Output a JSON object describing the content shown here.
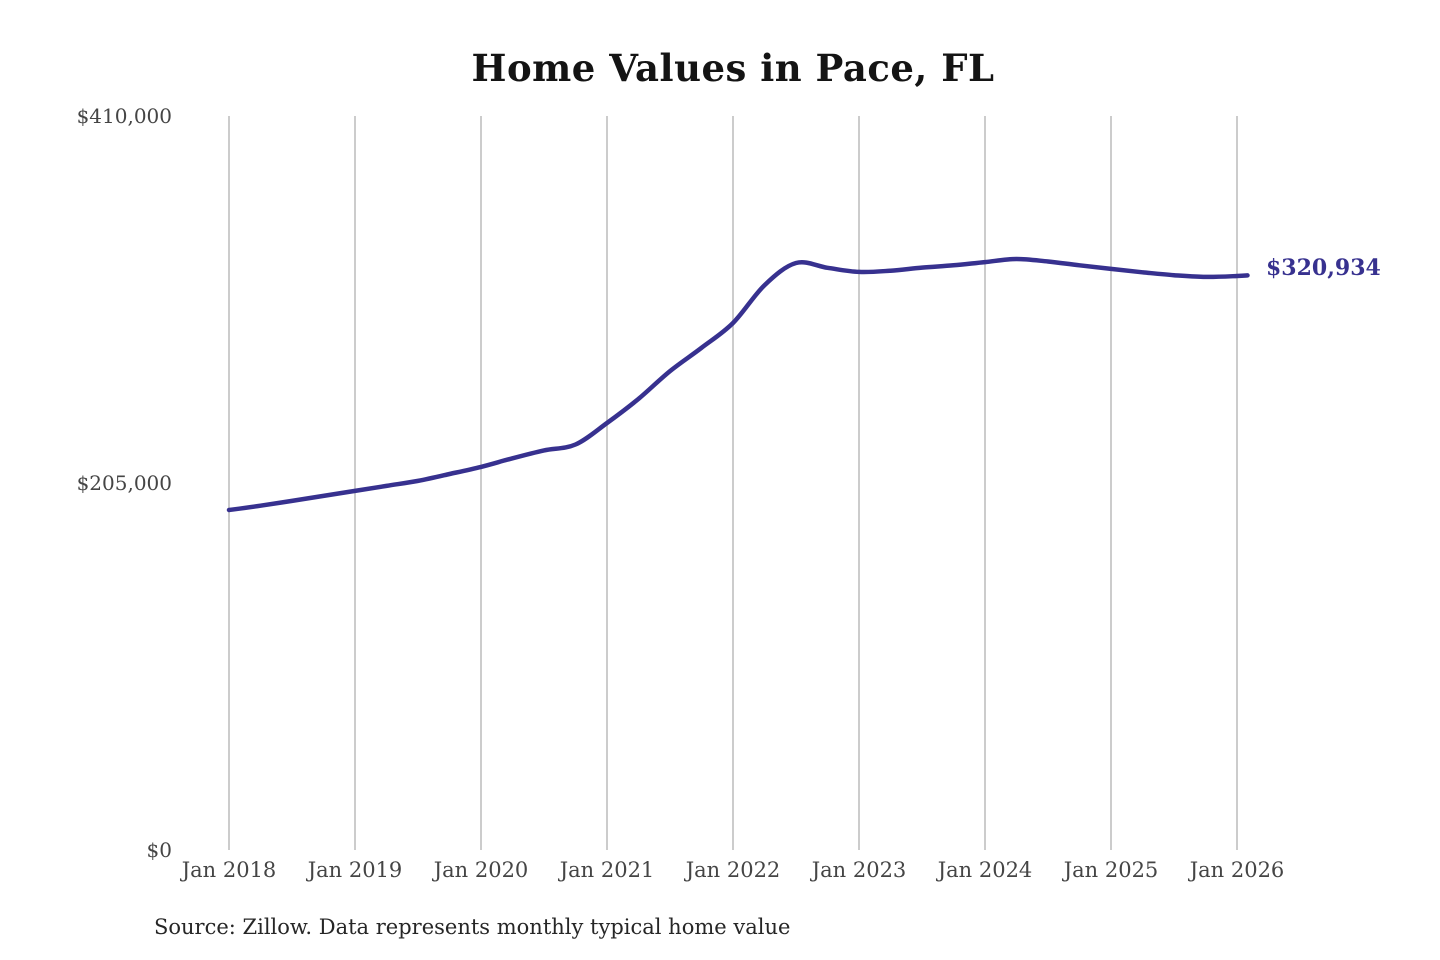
{
  "colors": {
    "background": "#ffffff",
    "title": "#141414",
    "axis_text": "#454545",
    "source_text": "#262626",
    "line": "#37318f",
    "end_label": "#37318f",
    "gridline": "#cccccc"
  },
  "chart_data": {
    "type": "line",
    "title": "Home Values in Pace, FL",
    "source_note": "Source: Zillow. Data represents monthly typical home value",
    "xlabel": "",
    "ylabel": "",
    "legend": "none",
    "grid": "vertical",
    "ylim": [
      0,
      410000
    ],
    "x_ticks": [
      "Jan 2018",
      "Jan 2019",
      "Jan 2020",
      "Jan 2021",
      "Jan 2022",
      "Jan 2023",
      "Jan 2024",
      "Jan 2025",
      "Jan 2026"
    ],
    "y_ticks": [
      {
        "label": "$410,000",
        "value": 410000
      },
      {
        "label": "$205,000",
        "value": 205000
      },
      {
        "label": "$0",
        "value": 0
      }
    ],
    "end_label": "$320,934",
    "end_value": 320934,
    "series": [
      {
        "name": "Typical home value",
        "points": [
          [
            "2018-01",
            189900
          ],
          [
            "2018-04",
            192300
          ],
          [
            "2018-07",
            195000
          ],
          [
            "2018-10",
            197800
          ],
          [
            "2019-01",
            200600
          ],
          [
            "2019-04",
            203400
          ],
          [
            "2019-07",
            206200
          ],
          [
            "2019-10",
            210000
          ],
          [
            "2020-01",
            214000
          ],
          [
            "2020-04",
            218800
          ],
          [
            "2020-07",
            223200
          ],
          [
            "2020-10",
            226500
          ],
          [
            "2021-01",
            238500
          ],
          [
            "2021-04",
            252000
          ],
          [
            "2021-07",
            267500
          ],
          [
            "2021-10",
            280500
          ],
          [
            "2022-01",
            294400
          ],
          [
            "2022-04",
            315500
          ],
          [
            "2022-07",
            327900
          ],
          [
            "2022-10",
            325200
          ],
          [
            "2023-01",
            322900
          ],
          [
            "2023-04",
            323600
          ],
          [
            "2023-07",
            325300
          ],
          [
            "2023-10",
            326600
          ],
          [
            "2024-01",
            328400
          ],
          [
            "2024-04",
            330100
          ],
          [
            "2024-07",
            328700
          ],
          [
            "2024-10",
            326600
          ],
          [
            "2025-01",
            324600
          ],
          [
            "2025-04",
            322700
          ],
          [
            "2025-07",
            321100
          ],
          [
            "2025-10",
            320100
          ],
          [
            "2026-01",
            320600
          ],
          [
            "2026-02",
            320934
          ]
        ]
      }
    ]
  }
}
